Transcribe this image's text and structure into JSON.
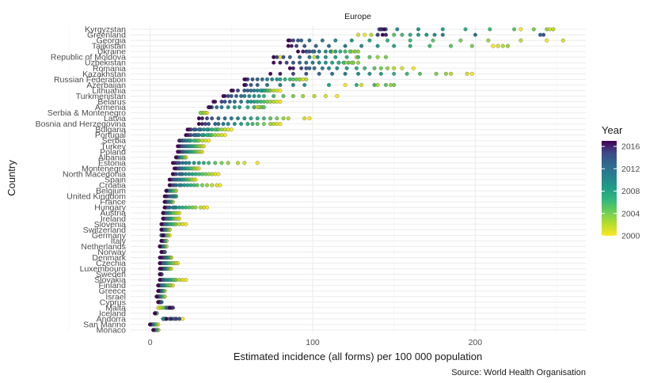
{
  "chart_data": {
    "type": "scatter",
    "title": "Europe",
    "xlabel": "Estimated incidence (all forms) per 100 000 population",
    "ylabel": "Country",
    "source": "Source: World Health Organisation",
    "xlim": [
      -12,
      268
    ],
    "xticks": [
      0,
      100,
      200
    ],
    "years": [
      2000,
      2001,
      2002,
      2003,
      2004,
      2005,
      2006,
      2007,
      2008,
      2009,
      2010,
      2011,
      2012,
      2013,
      2014,
      2015,
      2016,
      2017
    ],
    "legend": {
      "title": "Year",
      "ticks": [
        2016,
        2012,
        2008,
        2004,
        2000
      ],
      "range": [
        2000,
        2017
      ],
      "position": "right"
    },
    "colors": {
      "low": "#d8e219",
      "mid_low": "#5ec962",
      "mid": "#21918c",
      "mid_high": "#3b528b",
      "high": "#440154",
      "grid": "#ebebeb"
    },
    "grid": true,
    "series": [
      {
        "country": "Kyrgyzstan",
        "values": [
          228,
          246,
          248,
          244,
          236,
          224,
          209,
          194,
          180,
          165,
          152,
          141,
          143,
          145,
          142,
          141,
          142,
          144
        ]
      },
      {
        "country": "Greenland",
        "values": [
          132,
          128,
          136,
          140,
          145,
          150,
          155,
          160,
          165,
          170,
          175,
          180,
          200,
          240,
          242,
          140,
          145,
          143
        ]
      },
      {
        "country": "Georgia",
        "values": [
          244,
          254,
          228,
          208,
          191,
          174,
          160,
          146,
          135,
          124,
          114,
          106,
          98,
          93,
          91,
          88,
          86,
          85
        ]
      },
      {
        "country": "Tajikistan",
        "values": [
          211,
          214,
          217,
          220,
          198,
          185,
          172,
          160,
          150,
          140,
          130,
          120,
          110,
          102,
          95,
          90,
          87,
          85
        ]
      },
      {
        "country": "Ukraine",
        "values": [
          97,
          112,
          124,
          128,
          126,
          123,
          120,
          117,
          114,
          111,
          108,
          104,
          101,
          100,
          98,
          96,
          94,
          91
        ]
      },
      {
        "country": "Republic of Moldova",
        "values": [
          80,
          101,
          127,
          140,
          145,
          135,
          128,
          121,
          114,
          108,
          103,
          98,
          92,
          86,
          82,
          78,
          76,
          76
        ]
      },
      {
        "country": "Uzbekistan",
        "values": [
          116,
          120,
          124,
          128,
          125,
          122,
          119,
          116,
          112,
          108,
          104,
          100,
          96,
          92,
          88,
          84,
          80,
          76
        ]
      },
      {
        "country": "Romania",
        "values": [
          162,
          155,
          150,
          146,
          142,
          138,
          132,
          127,
          121,
          115,
          110,
          106,
          101,
          98,
          96,
          93,
          88,
          86
        ]
      },
      {
        "country": "Kazakhstan",
        "values": [
          198,
          195,
          185,
          182,
          176,
          166,
          158,
          150,
          142,
          135,
          128,
          120,
          112,
          104,
          96,
          88,
          80,
          74
        ]
      },
      {
        "country": "Russian Federation",
        "values": [
          92,
          94,
          96,
          92,
          90,
          88,
          86,
          83,
          80,
          78,
          75,
          72,
          69,
          66,
          63,
          60,
          59,
          58
        ]
      },
      {
        "country": "Azerbaijan",
        "values": [
          120,
          130,
          140,
          148,
          150,
          145,
          138,
          127,
          110,
          95,
          88,
          80,
          72,
          66,
          62,
          59,
          58,
          58
        ]
      },
      {
        "country": "Lithuania",
        "values": [
          80,
          78,
          76,
          74,
          73,
          72,
          71,
          70,
          69,
          68,
          66,
          64,
          62,
          60,
          58,
          54,
          51,
          50
        ]
      },
      {
        "country": "Turkmenistan",
        "values": [
          115,
          108,
          101,
          94,
          88,
          82,
          76,
          70,
          67,
          64,
          61,
          58,
          56,
          53,
          50,
          48,
          46,
          45
        ]
      },
      {
        "country": "Belarus",
        "values": [
          80,
          78,
          76,
          74,
          72,
          70,
          68,
          66,
          64,
          62,
          60,
          56,
          52,
          49,
          46,
          44,
          40,
          39
        ]
      },
      {
        "country": "Armenia",
        "values": [
          64,
          66,
          67,
          68,
          69,
          70,
          64,
          60,
          55,
          52,
          48,
          44,
          41,
          38,
          36,
          36,
          36,
          37
        ]
      },
      {
        "country": "Serbia & Montenegro",
        "values": [
          35,
          34,
          33,
          32,
          31
        ]
      },
      {
        "country": "Latvia",
        "values": [
          98,
          95,
          85,
          82,
          78,
          74,
          70,
          66,
          62,
          58,
          54,
          50,
          46,
          42,
          38,
          35,
          32,
          30
        ]
      },
      {
        "country": "Bosnia and Herzegovina",
        "values": [
          80,
          78,
          76,
          74,
          70,
          66,
          63,
          60,
          56,
          52,
          48,
          45,
          42,
          40,
          36,
          34,
          32,
          30
        ]
      },
      {
        "country": "Bulgaria",
        "values": [
          50,
          48,
          46,
          44,
          42,
          41,
          40,
          38,
          36,
          35,
          33,
          31,
          30,
          28,
          27,
          25,
          24,
          23
        ]
      },
      {
        "country": "Portugal",
        "values": [
          46,
          44,
          42,
          40,
          38,
          37,
          36,
          35,
          33,
          32,
          30,
          29,
          28,
          27,
          25,
          24,
          23,
          22
        ]
      },
      {
        "country": "Serbia",
        "values": [
          36,
          34,
          32,
          30,
          29,
          28,
          27,
          25,
          24,
          23,
          22,
          21,
          20,
          20,
          19,
          18,
          18
        ]
      },
      {
        "country": "Turkey",
        "values": [
          33,
          32,
          31,
          30,
          29,
          28,
          27,
          26,
          25,
          24,
          23,
          22,
          21,
          20,
          19,
          18,
          18,
          17
        ]
      },
      {
        "country": "Poland",
        "values": [
          32,
          31,
          30,
          29,
          28,
          27,
          26,
          25,
          24,
          23,
          22,
          21,
          20,
          20,
          19,
          18,
          18,
          17
        ]
      },
      {
        "country": "Albania",
        "values": [
          22,
          22,
          21,
          21,
          20,
          20,
          19,
          19,
          18,
          18,
          17,
          17,
          17,
          17,
          16,
          16,
          16,
          16
        ]
      },
      {
        "country": "Estonia",
        "values": [
          66,
          58,
          54,
          48,
          44,
          40,
          36,
          33,
          30,
          27,
          24,
          22,
          20,
          18,
          17,
          16,
          15,
          14
        ]
      },
      {
        "country": "Montenegro",
        "values": [
          30,
          29,
          28,
          27,
          26,
          25,
          24,
          23,
          22,
          21,
          20,
          19,
          18,
          18,
          17,
          16,
          16,
          15
        ]
      },
      {
        "country": "North Macedonia",
        "values": [
          42,
          40,
          38,
          36,
          34,
          32,
          30,
          28,
          26,
          24,
          22,
          20,
          19,
          18,
          16,
          15,
          14,
          14
        ]
      },
      {
        "country": "Spain",
        "values": [
          28,
          27,
          26,
          25,
          24,
          23,
          22,
          21,
          20,
          19,
          18,
          17,
          16,
          15,
          14,
          13,
          12,
          12
        ]
      },
      {
        "country": "Croatia",
        "values": [
          43,
          41,
          38,
          35,
          32,
          29,
          27,
          25,
          23,
          21,
          19,
          18,
          16,
          15,
          14,
          13,
          12,
          12
        ]
      },
      {
        "country": "Belgium",
        "values": [
          16,
          16,
          15,
          15,
          14,
          14,
          13,
          13,
          12,
          12,
          11,
          11,
          10,
          10,
          10,
          10,
          10,
          10
        ]
      },
      {
        "country": "United Kingdom",
        "values": [
          14,
          15,
          15,
          15,
          16,
          16,
          16,
          15,
          15,
          15,
          14,
          14,
          13,
          12,
          11,
          10,
          10,
          9
        ]
      },
      {
        "country": "France",
        "values": [
          14,
          14,
          13,
          13,
          13,
          13,
          12,
          12,
          12,
          11,
          11,
          11,
          10,
          10,
          10,
          9,
          9,
          9
        ]
      },
      {
        "country": "Hungary",
        "values": [
          35,
          33,
          31,
          28,
          26,
          24,
          22,
          20,
          18,
          16,
          15,
          14,
          12,
          11,
          10,
          9,
          9,
          9
        ]
      },
      {
        "country": "Austria",
        "values": [
          18,
          17,
          16,
          15,
          14,
          13,
          12,
          12,
          11,
          11,
          10,
          10,
          9,
          9,
          8,
          8,
          8,
          8
        ]
      },
      {
        "country": "Ireland",
        "values": [
          18,
          17,
          16,
          15,
          14,
          13,
          13,
          12,
          12,
          11,
          11,
          10,
          10,
          9,
          9,
          8,
          8,
          8
        ]
      },
      {
        "country": "Slovenia",
        "values": [
          22,
          20,
          18,
          16,
          15,
          14,
          13,
          12,
          11,
          10,
          10,
          9,
          9,
          8,
          8,
          7,
          7,
          7
        ]
      },
      {
        "country": "Switzerland",
        "values": [
          12,
          12,
          11,
          11,
          10,
          10,
          10,
          9,
          9,
          9,
          8,
          8,
          8,
          8,
          7,
          7,
          7,
          7
        ]
      },
      {
        "country": "Germany",
        "values": [
          12,
          11,
          11,
          10,
          10,
          9,
          9,
          9,
          8,
          8,
          8,
          7,
          7,
          7,
          7,
          7,
          8,
          8
        ]
      },
      {
        "country": "Italy",
        "values": [
          10,
          10,
          10,
          9,
          9,
          9,
          9,
          8,
          8,
          8,
          8,
          7,
          7,
          7,
          7,
          7,
          7,
          7
        ]
      },
      {
        "country": "Netherlands",
        "values": [
          10,
          10,
          9,
          9,
          9,
          8,
          8,
          8,
          8,
          7,
          7,
          7,
          7,
          6,
          6,
          6,
          6,
          6
        ]
      },
      {
        "country": "Norway",
        "values": [
          8,
          8,
          8,
          8,
          8,
          8,
          8,
          8,
          8,
          8,
          9,
          9,
          9,
          9,
          8,
          7,
          7,
          7
        ]
      },
      {
        "country": "Denmark",
        "values": [
          13,
          13,
          12,
          12,
          11,
          11,
          11,
          10,
          10,
          10,
          9,
          9,
          9,
          8,
          8,
          7,
          7,
          6
        ]
      },
      {
        "country": "Czechia",
        "values": [
          17,
          16,
          15,
          14,
          13,
          12,
          11,
          10,
          10,
          9,
          9,
          8,
          8,
          7,
          7,
          6,
          6,
          6
        ]
      },
      {
        "country": "Luxembourg",
        "values": [
          13,
          12,
          12,
          11,
          11,
          10,
          10,
          10,
          9,
          9,
          9,
          8,
          8,
          8,
          7,
          7,
          7,
          6
        ]
      },
      {
        "country": "Sweden",
        "values": [
          6,
          6,
          6,
          6,
          7,
          7,
          7,
          7,
          7,
          7,
          7,
          7,
          7,
          7,
          7,
          7,
          6,
          6
        ]
      },
      {
        "country": "Slovakia",
        "values": [
          22,
          20,
          18,
          16,
          15,
          14,
          13,
          12,
          11,
          10,
          9,
          8,
          8,
          7,
          7,
          6,
          6,
          6
        ]
      },
      {
        "country": "Finland",
        "values": [
          14,
          13,
          12,
          12,
          11,
          10,
          9,
          9,
          8,
          8,
          7,
          7,
          6,
          6,
          5,
          5,
          5,
          5
        ]
      },
      {
        "country": "Greece",
        "values": [
          9,
          9,
          8,
          8,
          8,
          8,
          7,
          7,
          7,
          7,
          6,
          6,
          6,
          6,
          6,
          5,
          5,
          5
        ]
      },
      {
        "country": "Israel",
        "values": [
          9,
          9,
          8,
          8,
          7,
          7,
          7,
          6,
          6,
          6,
          6,
          5,
          5,
          5,
          5,
          4,
          4,
          4
        ]
      },
      {
        "country": "Cyprus",
        "values": [
          5,
          5,
          5,
          5,
          6,
          6,
          6,
          6,
          7,
          7,
          7,
          7,
          6,
          6,
          6,
          6,
          5,
          5
        ]
      },
      {
        "country": "Malta",
        "values": [
          5,
          6,
          7,
          8,
          9,
          10,
          12,
          14,
          13,
          12,
          11,
          10,
          11,
          12,
          13,
          14,
          13,
          12
        ]
      },
      {
        "country": "Iceland",
        "values": [
          4,
          4,
          4,
          4,
          4,
          4,
          4,
          3,
          3,
          3,
          3,
          3,
          3,
          3,
          3,
          3,
          3,
          3
        ]
      },
      {
        "country": "Andorra",
        "values": [
          20,
          18,
          16,
          14,
          12,
          10,
          9,
          8,
          8,
          8,
          9,
          10,
          12,
          15,
          18,
          16,
          13,
          10
        ]
      },
      {
        "country": "San Marino",
        "values": [
          5,
          4,
          4,
          3,
          3,
          3,
          2,
          2,
          2,
          1,
          1,
          1,
          1,
          1,
          0,
          0,
          0,
          0
        ]
      },
      {
        "country": "Monaco",
        "values": [
          5,
          5,
          5,
          4,
          4,
          4,
          4,
          3,
          3,
          3,
          3,
          2,
          2,
          2,
          2,
          2,
          2,
          2
        ]
      }
    ]
  }
}
